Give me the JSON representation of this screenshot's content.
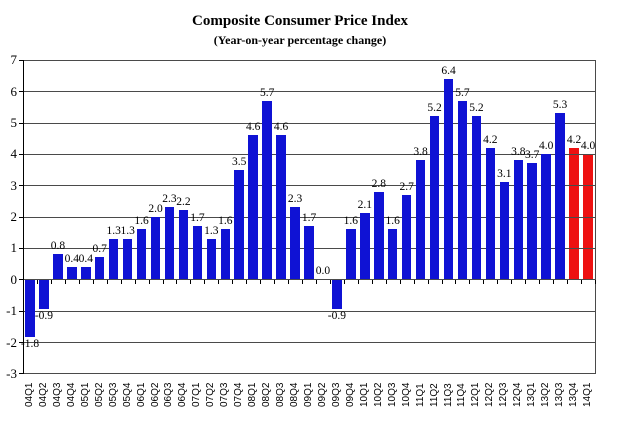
{
  "chart_data": {
    "type": "bar",
    "title": "Composite Consumer Price Index",
    "subtitle": "(Year-on-year percentage change)",
    "categories": [
      "04Q1",
      "04Q2",
      "04Q3",
      "04Q4",
      "05Q1",
      "05Q2",
      "05Q3",
      "05Q4",
      "06Q1",
      "06Q2",
      "06Q3",
      "06Q4",
      "07Q1",
      "07Q2",
      "07Q3",
      "07Q4",
      "08Q1",
      "08Q2",
      "08Q3",
      "08Q4",
      "09Q1",
      "09Q2",
      "09Q3",
      "09Q4",
      "10Q1",
      "10Q2",
      "10Q3",
      "10Q4",
      "11Q1",
      "11Q2",
      "11Q3",
      "11Q4",
      "12Q1",
      "12Q2",
      "12Q3",
      "12Q4",
      "13Q1",
      "13Q2",
      "13Q3",
      "13Q4",
      "14Q1"
    ],
    "values": [
      -1.8,
      -0.9,
      0.8,
      0.4,
      0.4,
      0.7,
      1.3,
      1.3,
      1.6,
      2.0,
      2.3,
      2.2,
      1.7,
      1.3,
      1.6,
      3.5,
      4.6,
      5.7,
      4.6,
      2.3,
      1.7,
      0.0,
      -0.9,
      1.6,
      2.1,
      2.8,
      1.6,
      2.7,
      3.8,
      5.2,
      6.4,
      5.7,
      5.2,
      4.2,
      3.1,
      3.8,
      3.7,
      4.0,
      5.3,
      4.2,
      4.0
    ],
    "highlight_indices": [
      39,
      40
    ],
    "ylim": [
      -3,
      7
    ],
    "yticks": [
      7,
      6,
      5,
      4,
      3,
      2,
      1,
      0,
      -1,
      -2,
      -3
    ],
    "grid": true,
    "legend": "none",
    "colors": {
      "bar": "#0f12d4",
      "highlight": "#ee1111",
      "grid": "#4a4a4a",
      "axis": "#000000"
    }
  }
}
